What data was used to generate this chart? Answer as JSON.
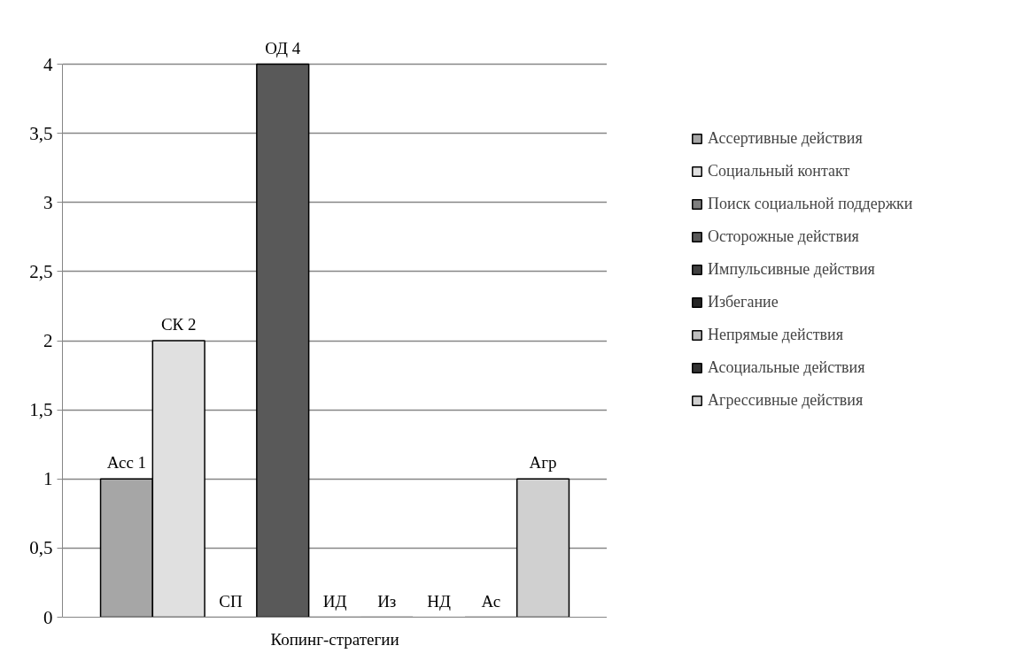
{
  "chart_data": {
    "type": "bar",
    "categories": [
      "Копинг-стратегии"
    ],
    "series": [
      {
        "name": "Ассертивные действия",
        "color": "#a6a6a6",
        "values": [
          1
        ],
        "value_labels": [
          "Асс 1"
        ]
      },
      {
        "name": "Социальный контакт",
        "color": "#e0e0e0",
        "values": [
          2
        ],
        "value_labels": [
          "СК 2"
        ]
      },
      {
        "name": "Поиск социальной поддержки",
        "color": "#7f7f7f",
        "values": [
          0
        ],
        "value_labels": [
          "СП"
        ]
      },
      {
        "name": "Осторожные действия",
        "color": "#595959",
        "values": [
          4
        ],
        "value_labels": [
          "ОД 4"
        ]
      },
      {
        "name": "Импульсивные действия",
        "color": "#404040",
        "values": [
          0
        ],
        "value_labels": [
          "ИД"
        ]
      },
      {
        "name": "Избегание",
        "color": "#262626",
        "values": [
          0
        ],
        "value_labels": [
          "Из"
        ]
      },
      {
        "name": "Непрямые действия",
        "color": "#bfbfbf",
        "values": [
          0
        ],
        "value_labels": [
          "НД"
        ]
      },
      {
        "name": "Асоциальные действия",
        "color": "#333333",
        "values": [
          0
        ],
        "value_labels": [
          "Ас"
        ]
      },
      {
        "name": "Агрессивные действия",
        "color": "#d0d0d0",
        "values": [
          1
        ],
        "value_labels": [
          "Агр"
        ]
      }
    ],
    "ylim": [
      0,
      4
    ],
    "yticks": [
      0,
      {
        "value": 0.5,
        "label": "0,5"
      },
      1,
      {
        "value": 1.5,
        "label": "1,5"
      },
      2,
      {
        "value": 2.5,
        "label": "2,5"
      },
      3,
      {
        "value": 3.5,
        "label": "3,5"
      },
      4
    ],
    "grid": "y",
    "legend": "right"
  }
}
